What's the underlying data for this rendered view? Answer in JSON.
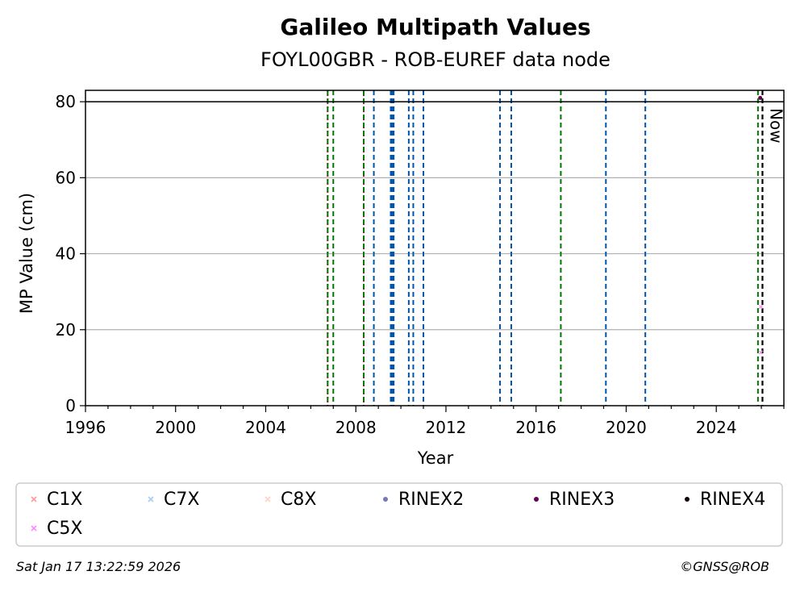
{
  "chart_data": {
    "type": "scatter",
    "title": "Galileo Multipath Values",
    "subtitle": "FOYL00GBR - ROB-EUREF data node",
    "xlabel": "Year",
    "ylabel": "MP Value (cm)",
    "xlim": [
      1996,
      2027
    ],
    "ylim": [
      0,
      83
    ],
    "x_ticks": [
      1996,
      2000,
      2004,
      2008,
      2012,
      2016,
      2020,
      2024
    ],
    "y_ticks": [
      0,
      20,
      40,
      60,
      80
    ],
    "grid": "horizontal",
    "reference_line": {
      "y": 80
    },
    "now_label": "Now",
    "now_x": 2026.05,
    "legend_placement": "below",
    "series": [
      {
        "name": "C1X",
        "color": "#ff9999",
        "marker": "x",
        "points": []
      },
      {
        "name": "C7X",
        "color": "#aaccee",
        "marker": "x",
        "points": []
      },
      {
        "name": "C8X",
        "color": "#ffd4c4",
        "marker": "x",
        "points": []
      },
      {
        "name": "RINEX2",
        "color": "#7777bb",
        "marker": "dot",
        "points": []
      },
      {
        "name": "RINEX3",
        "color": "#660055",
        "marker": "dot",
        "points": [
          [
            2025.95,
            81
          ]
        ]
      },
      {
        "name": "RINEX4",
        "color": "#1a0010",
        "marker": "dot",
        "points": []
      },
      {
        "name": "C5X",
        "color": "#ff88ff",
        "marker": "x",
        "points": [
          [
            2025.98,
            26
          ],
          [
            2025.98,
            14
          ]
        ]
      }
    ],
    "event_lines": [
      {
        "x": 2006.75,
        "color": "#cc0000",
        "style": "dotted"
      },
      {
        "x": 2006.75,
        "color": "#007700",
        "style": "dashed"
      },
      {
        "x": 2007.0,
        "color": "#007700",
        "style": "dashed"
      },
      {
        "x": 2008.35,
        "color": "#cc0000",
        "style": "dotted"
      },
      {
        "x": 2008.35,
        "color": "#007700",
        "style": "dashed"
      },
      {
        "x": 2008.8,
        "color": "#0055aa",
        "style": "dashed"
      },
      {
        "x": 2009.55,
        "color": "#0055aa",
        "style": "dashed"
      },
      {
        "x": 2009.62,
        "color": "#0055aa",
        "style": "dashed"
      },
      {
        "x": 2009.68,
        "color": "#0055aa",
        "style": "dashed"
      },
      {
        "x": 2010.35,
        "color": "#0055aa",
        "style": "dashed"
      },
      {
        "x": 2010.55,
        "color": "#0055aa",
        "style": "dashed"
      },
      {
        "x": 2011.0,
        "color": "#0055aa",
        "style": "dashed"
      },
      {
        "x": 2014.4,
        "color": "#0055aa",
        "style": "dashed"
      },
      {
        "x": 2014.9,
        "color": "#0055aa",
        "style": "dashed"
      },
      {
        "x": 2017.1,
        "color": "#007700",
        "style": "dashed"
      },
      {
        "x": 2019.1,
        "color": "#0055aa",
        "style": "dashed"
      },
      {
        "x": 2020.85,
        "color": "#0055aa",
        "style": "dashed"
      },
      {
        "x": 2025.85,
        "color": "#007700",
        "style": "dashed"
      },
      {
        "x": 2026.05,
        "color": "#000000",
        "style": "dashed"
      }
    ]
  },
  "footer": {
    "timestamp": "Sat Jan 17 13:22:59 2026",
    "credit": "©GNSS@ROB"
  }
}
